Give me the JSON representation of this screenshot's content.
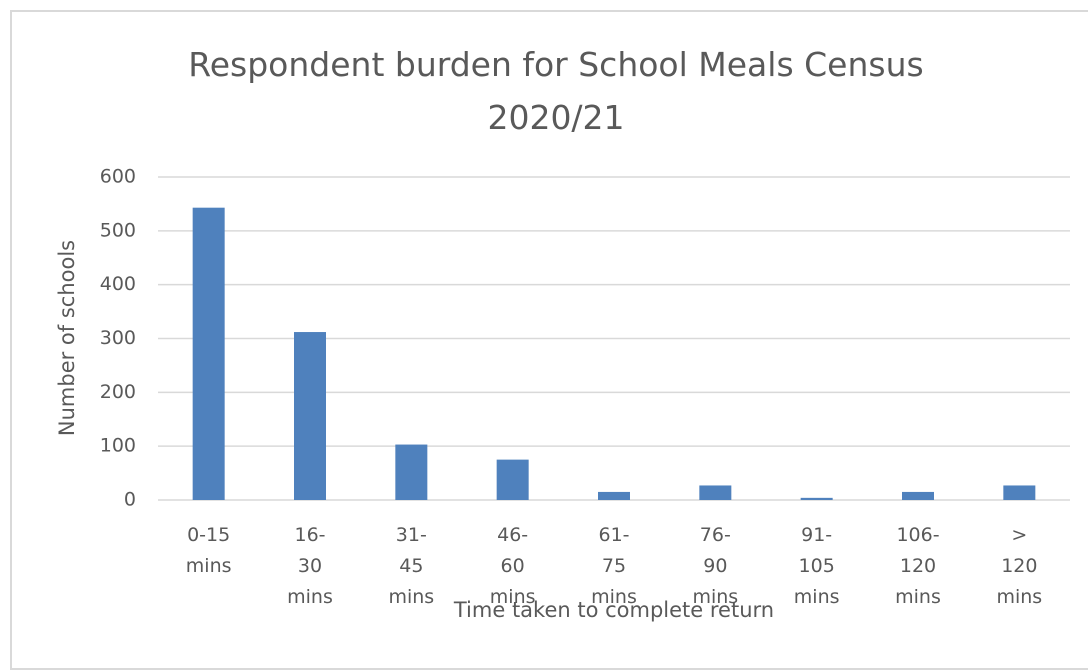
{
  "chart_data": {
    "type": "bar",
    "title": "Respondent burden for School Meals Census 2020/21",
    "x_label": "Time taken to complete return",
    "y_label": "Number of schools",
    "categories": [
      "0-15 mins",
      "16-30 mins",
      "31-45 mins",
      "46-60 mins",
      "61-75 mins",
      "76-90 mins",
      "91-105 mins",
      "106-120 mins",
      "> 120 mins"
    ],
    "values": [
      543,
      312,
      103,
      75,
      15,
      27,
      4,
      15,
      27
    ],
    "color": "#4f81bd",
    "ylim": [
      0,
      600
    ],
    "yticks": [
      0,
      100,
      200,
      300,
      400,
      500,
      600
    ],
    "grid": true
  }
}
